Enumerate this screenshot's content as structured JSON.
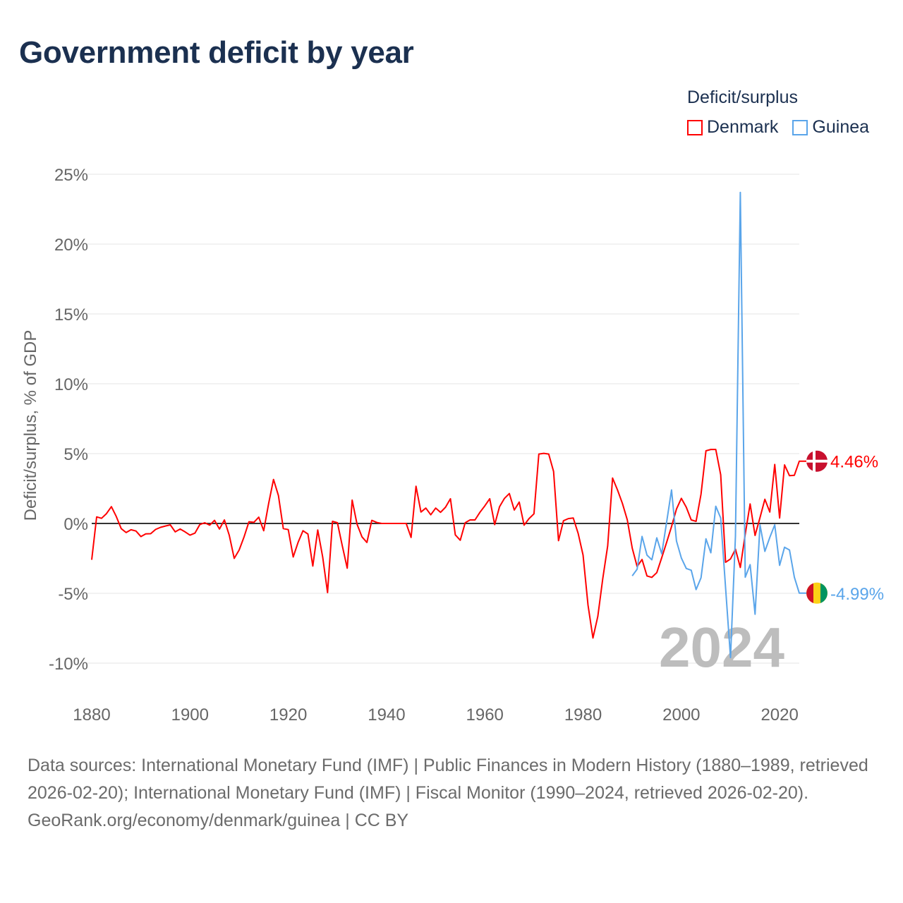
{
  "title": "Government deficit by year",
  "legend": {
    "title": "Deficit/surplus",
    "items": [
      {
        "label": "Denmark",
        "color": "#ff0000"
      },
      {
        "label": "Guinea",
        "color": "#5aa5ea"
      }
    ]
  },
  "footer": {
    "sources": "Data sources: International Monetary Fund (IMF) | Public Finances in Modern History (1880–1989, retrieved 2026-02-20); International Monetary Fund (IMF) | Fiscal Monitor (1990–2024, retrieved 2026-02-20).",
    "credit": "GeoRank.org/economy/denmark/guinea | CC BY"
  },
  "chart_data": {
    "type": "line",
    "title": "Government deficit by year",
    "xlabel": "",
    "ylabel": "Deficit/surplus, % of GDP",
    "xlim": [
      1880,
      2024
    ],
    "ylim": [
      -10,
      25
    ],
    "x_ticks": [
      1880,
      1900,
      1920,
      1940,
      1960,
      1980,
      2000,
      2020
    ],
    "x_tick_labels": [
      "1880",
      "1900",
      "1920",
      "1940",
      "1960",
      "1980",
      "2000",
      "2020"
    ],
    "y_ticks": [
      25,
      20,
      15,
      10,
      5,
      0,
      -5,
      -10
    ],
    "y_tick_labels": [
      "25%",
      "20%",
      "15%",
      "10%",
      "5%",
      "0%",
      "-5%",
      "-10%"
    ],
    "grid": true,
    "legend_position": "top-right",
    "watermark_year": "2024",
    "series": [
      {
        "name": "Denmark",
        "color": "#ff0000",
        "start_year": 1880,
        "end_label": "4.46%",
        "flag": "denmark-flag",
        "values": [
          -2.6,
          0.47,
          0.37,
          0.7,
          1.2,
          0.5,
          -0.37,
          -0.65,
          -0.45,
          -0.54,
          -0.94,
          -0.74,
          -0.73,
          -0.43,
          -0.28,
          -0.18,
          -0.1,
          -0.6,
          -0.4,
          -0.6,
          -0.84,
          -0.69,
          -0.08,
          0.05,
          -0.12,
          0.22,
          -0.4,
          0.25,
          -0.85,
          -2.5,
          -1.9,
          -0.97,
          0.12,
          0.08,
          0.45,
          -0.52,
          1.43,
          3.15,
          1.99,
          -0.37,
          -0.44,
          -2.4,
          -1.36,
          -0.52,
          -0.76,
          -3.05,
          -0.47,
          -2.4,
          -4.95,
          0.15,
          0.05,
          -1.6,
          -3.2,
          1.67,
          -0.05,
          -0.96,
          -1.36,
          0.22,
          0.07,
          0,
          0,
          0,
          0,
          0,
          0,
          -1.0,
          2.66,
          0.82,
          1.1,
          0.62,
          1.1,
          0.8,
          1.16,
          1.77,
          -0.82,
          -1.2,
          0.05,
          0.25,
          0.25,
          0.8,
          1.26,
          1.77,
          -0.08,
          1.2,
          1.8,
          2.14,
          0.96,
          1.53,
          -0.12,
          0.35,
          0.69,
          4.97,
          5.02,
          4.97,
          3.72,
          -1.23,
          0.19,
          0.35,
          0.39,
          -0.72,
          -2.27,
          -5.84,
          -8.2,
          -6.65,
          -3.96,
          -1.6,
          3.25,
          2.4,
          1.43,
          0.25,
          -1.77,
          -3.08,
          -2.58,
          -3.76,
          -3.86,
          -3.52,
          -2.45,
          -1.36,
          -0.22,
          1.03,
          1.8,
          1.16,
          0.25,
          0.15,
          2.1,
          5.2,
          5.3,
          5.3,
          3.48,
          -2.78,
          -2.54,
          -1.84,
          -3.15,
          -0.76,
          1.4,
          -0.86,
          0.42,
          1.73,
          0.82,
          4.22,
          0.39,
          4.19,
          3.42,
          3.45,
          4.46
        ]
      },
      {
        "name": "Guinea",
        "color": "#5aa5ea",
        "start_year": 1990,
        "end_label": "-4.99%",
        "flag": "guinea-flag",
        "values": [
          -3.75,
          -3.28,
          -0.93,
          -2.27,
          -2.6,
          -1.03,
          -2.17,
          0.08,
          2.4,
          -1.26,
          -2.47,
          -3.22,
          -3.35,
          -4.73,
          -3.89,
          -1.1,
          -2.1,
          1.23,
          0.39,
          -4.6,
          -9.6,
          -0.9,
          23.7,
          -3.85,
          -2.95,
          -6.5,
          -0.1,
          -2.0,
          -1.0,
          -0.1,
          -3.0,
          -1.7,
          -1.9,
          -3.85,
          -4.99
        ]
      }
    ]
  }
}
